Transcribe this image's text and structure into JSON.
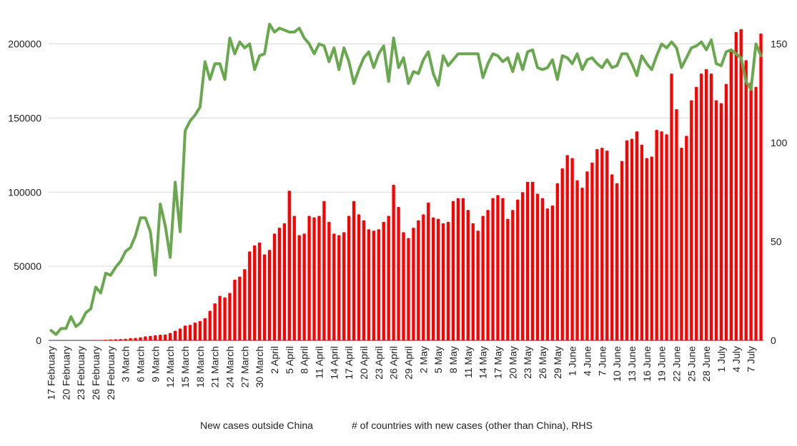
{
  "chart_data": {
    "type": "bar+line",
    "title": "",
    "xlabel": "",
    "ylabel": "",
    "y_left_lim": [
      0,
      220000
    ],
    "y_left_ticks": [
      0,
      50000,
      100000,
      150000,
      200000
    ],
    "y_left_tick_labels": [
      "0",
      "50000",
      "100000",
      "150000",
      "200000"
    ],
    "y_right_lim": [
      0,
      165
    ],
    "y_right_ticks": [
      0,
      50,
      100,
      150
    ],
    "y_right_tick_labels": [
      "0",
      "50",
      "100",
      "150"
    ],
    "grid": true,
    "legend_position": "bottom",
    "x_tick_labels": [
      "17 February",
      "20 February",
      "23 February",
      "26 February",
      "29 February",
      "3 March",
      "6 March",
      "9 March",
      "12 March",
      "15 March",
      "18 March",
      "21 March",
      "24 March",
      "27 March",
      "30 March",
      "2 April",
      "5 April",
      "8 April",
      "11 April",
      "14 April",
      "17 April",
      "20 April",
      "23 April",
      "26 April",
      "29 April",
      "2 May",
      "5 May",
      "8 May",
      "11 May",
      "14 May",
      "17 May",
      "20 May",
      "23 May",
      "26 May",
      "29 May",
      "1 June",
      "4 June",
      "7 June",
      "10 June",
      "13 June",
      "16 June",
      "19 June",
      "22 June",
      "25 June",
      "28 June",
      "1 July",
      "4 July",
      "7 July"
    ],
    "series": [
      {
        "name": "New cases outside China",
        "type": "bar",
        "axis": "left",
        "color": "#ff0000",
        "values": [
          0,
          0,
          0,
          0,
          0,
          0,
          0,
          0,
          0,
          100,
          200,
          400,
          600,
          700,
          900,
          1100,
          1500,
          1600,
          2100,
          2700,
          3000,
          3400,
          3800,
          4000,
          5000,
          6500,
          8000,
          10000,
          10500,
          12000,
          13000,
          15000,
          20000,
          25000,
          30000,
          29000,
          32000,
          41000,
          43000,
          48000,
          60000,
          64000,
          66000,
          58000,
          61000,
          72000,
          76000,
          79000,
          101000,
          84000,
          71000,
          72000,
          84000,
          83000,
          84000,
          94000,
          80000,
          72000,
          71000,
          73000,
          84000,
          94000,
          85000,
          81000,
          75000,
          74000,
          75000,
          80000,
          84000,
          105000,
          90000,
          73000,
          69000,
          76000,
          81000,
          85000,
          93000,
          83000,
          82000,
          79000,
          80000,
          94000,
          96000,
          96000,
          88000,
          79000,
          74000,
          84000,
          88000,
          96000,
          98000,
          96000,
          82000,
          88000,
          95000,
          100000,
          107000,
          107000,
          99000,
          96000,
          89000,
          91000,
          106000,
          116000,
          125000,
          123000,
          108000,
          103000,
          114000,
          120000,
          129000,
          130000,
          128000,
          112000,
          106000,
          121000,
          135000,
          136000,
          141000,
          132000,
          123000,
          124000,
          142000,
          141000,
          139000,
          180000,
          156000,
          130000,
          138000,
          162000,
          171000,
          180000,
          183000,
          180000,
          162000,
          160000,
          173000,
          196000,
          208000,
          210000,
          189000,
          174000,
          171000,
          207000
        ]
      },
      {
        "name": "# of countries with new cases (other than China), RHS",
        "type": "line",
        "axis": "right",
        "color": "#6aa84f",
        "values": [
          5,
          3,
          6,
          6,
          12,
          7,
          9,
          14,
          16,
          27,
          24,
          34,
          33,
          37,
          40,
          45,
          47,
          53,
          62,
          62,
          55,
          33,
          69,
          58,
          42,
          80,
          55,
          106,
          111,
          114,
          118,
          141,
          132,
          140,
          140,
          132,
          153,
          145,
          151,
          148,
          150,
          137,
          144,
          145,
          160,
          156,
          158,
          157,
          156,
          156,
          158,
          153,
          150,
          145,
          150,
          149,
          141,
          148,
          137,
          148,
          141,
          130,
          137,
          143,
          146,
          138,
          145,
          149,
          131,
          153,
          138,
          143,
          130,
          136,
          135,
          142,
          146,
          135,
          129,
          144,
          139,
          142,
          145,
          145,
          145,
          145,
          145,
          133,
          140,
          145,
          144,
          141,
          143,
          136,
          145,
          137,
          146,
          147,
          138,
          137,
          138,
          142,
          132,
          144,
          143,
          140,
          145,
          137,
          142,
          143,
          140,
          138,
          142,
          138,
          139,
          145,
          145,
          140,
          134,
          144,
          140,
          137,
          144,
          150,
          148,
          151,
          148,
          138,
          143,
          148,
          149,
          151,
          147,
          152,
          140,
          139,
          146,
          147,
          145,
          143,
          131,
          127,
          150,
          144
        ]
      }
    ]
  }
}
